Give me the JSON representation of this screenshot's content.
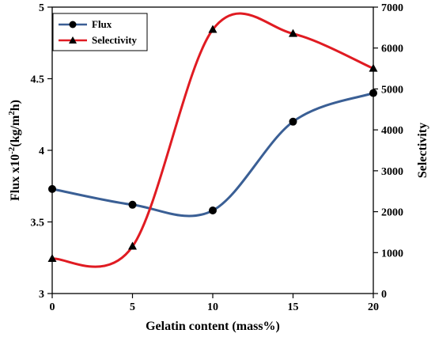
{
  "chart_data": {
    "type": "line",
    "xlabel": "Gelatin content (mass%)",
    "ylabel_left_main": "Flux x10",
    "ylabel_left_sup": "-2",
    "ylabel_left_unit": "(kg/m",
    "ylabel_left_unit_sup": "2",
    "ylabel_left_end": "h)",
    "ylabel_right": "Selectivity",
    "x": [
      0,
      5,
      10,
      15,
      20
    ],
    "x_ticks": [
      "0",
      "5",
      "10",
      "15",
      "20"
    ],
    "xlim": [
      0,
      20
    ],
    "ylim_left": [
      3,
      5
    ],
    "y_left_ticks": [
      "3",
      "3.5",
      "4",
      "4.5",
      "5"
    ],
    "ylim_right": [
      0,
      7000
    ],
    "y_right_ticks": [
      "0",
      "1000",
      "2000",
      "3000",
      "4000",
      "5000",
      "6000",
      "7000"
    ],
    "grid": false,
    "legend_position": "top-left",
    "series": [
      {
        "name": "Flux",
        "axis": "left",
        "color": "#3a5f95",
        "marker": "circle",
        "values": [
          3.73,
          3.62,
          3.58,
          4.2,
          4.4
        ]
      },
      {
        "name": "Selectivity",
        "axis": "right",
        "color": "#e01b22",
        "marker": "triangle",
        "values": [
          850,
          1150,
          6450,
          6350,
          5500
        ]
      }
    ]
  }
}
